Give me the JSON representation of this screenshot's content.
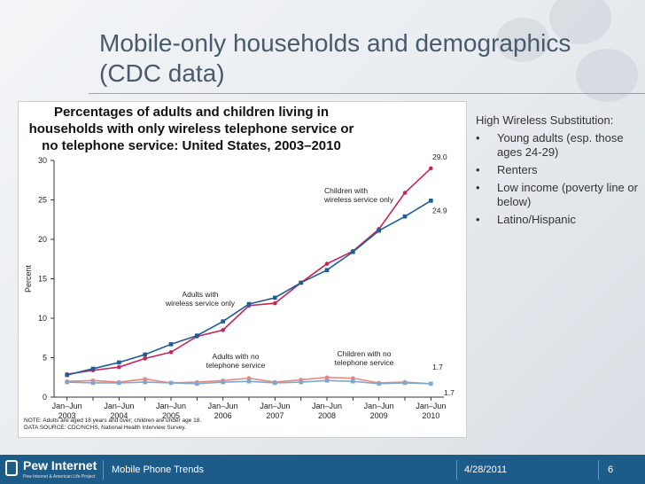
{
  "slide": {
    "title_line1": "Mobile-only households and demographics",
    "title_line2": "(CDC data)"
  },
  "sidebar": {
    "heading": "High Wireless Substitution:",
    "bullets": [
      "Young adults (esp. those ages 24-29)",
      "Renters",
      "Low income (poverty line or below)",
      "Latino/Hispanic"
    ],
    "bullet_char": "•"
  },
  "footer": {
    "logo_name": "Pew Internet",
    "logo_sub": "Pew Internet & American Life Project",
    "section": "Mobile Phone Trends",
    "date": "4/28/2011",
    "page": "6",
    "bar_color": "#1d5b88"
  },
  "chart_data": {
    "type": "line",
    "title_lines": [
      "Percentages of adults and children living in",
      "households with only wireless telephone service or",
      "no telephone service: United States, 2003–2010"
    ],
    "ylabel": "Percent",
    "ylim": [
      0,
      30
    ],
    "yticks": [
      0,
      5,
      10,
      15,
      20,
      25,
      30
    ],
    "x": [
      0,
      1,
      2,
      3,
      4,
      5,
      6,
      7,
      8,
      9,
      10,
      11,
      12,
      13,
      14
    ],
    "xlim": [
      -0.5,
      14.5
    ],
    "x_tick_labels": [
      {
        "top": "Jan–Jun",
        "bottom": "2003"
      },
      {
        "top": "Jan–Jun",
        "bottom": "2004"
      },
      {
        "top": "Jan–Jun",
        "bottom": "2005"
      },
      {
        "top": "Jan–Jun",
        "bottom": "2006"
      },
      {
        "top": "Jan–Jun",
        "bottom": "2007"
      },
      {
        "top": "Jan–Jun",
        "bottom": "2008"
      },
      {
        "top": "Jan–Jun",
        "bottom": "2009"
      },
      {
        "top": "Jan–Jun",
        "bottom": "2010"
      }
    ],
    "series": [
      {
        "name": "Children with wireless service only",
        "color": "#c8245a",
        "values": [
          2.9,
          3.4,
          3.8,
          4.9,
          5.7,
          7.7,
          8.5,
          11.6,
          11.9,
          14.5,
          16.9,
          18.5,
          21.3,
          25.9,
          29.0
        ],
        "end_label": "29.0"
      },
      {
        "name": "Adults with wireless service only",
        "color": "#1f5d99",
        "values": [
          2.8,
          3.6,
          4.4,
          5.4,
          6.7,
          7.8,
          9.6,
          11.8,
          12.6,
          14.5,
          16.1,
          18.4,
          21.1,
          22.9,
          24.9
        ],
        "end_label": "24.9"
      },
      {
        "name": "Children with no telephone service",
        "color": "#e8877f",
        "values": [
          2.0,
          2.1,
          1.9,
          2.3,
          1.8,
          1.9,
          2.1,
          2.4,
          1.9,
          2.2,
          2.5,
          2.4,
          1.8,
          1.9,
          1.7
        ],
        "end_label": "1.7"
      },
      {
        "name": "Adults with no telephone service",
        "color": "#7fa8cf",
        "values": [
          1.9,
          1.8,
          1.8,
          1.9,
          1.8,
          1.7,
          1.9,
          2.0,
          1.8,
          1.9,
          2.1,
          2.0,
          1.7,
          1.8,
          1.7
        ],
        "end_label": "1.7"
      }
    ],
    "annotations": [
      {
        "lines": [
          "Children with",
          "wireless service only"
        ]
      },
      {
        "lines": [
          "Adults with",
          "wireless service only"
        ]
      },
      {
        "lines": [
          "Adults with no",
          "telephone service"
        ]
      },
      {
        "lines": [
          "Children with no",
          "telephone service"
        ]
      }
    ],
    "notes": [
      "NOTE: Adults are aged 18 years and over; children are under age 18.",
      "DATA SOURCE: CDC/NCHS, National Health Interview Survey."
    ]
  }
}
